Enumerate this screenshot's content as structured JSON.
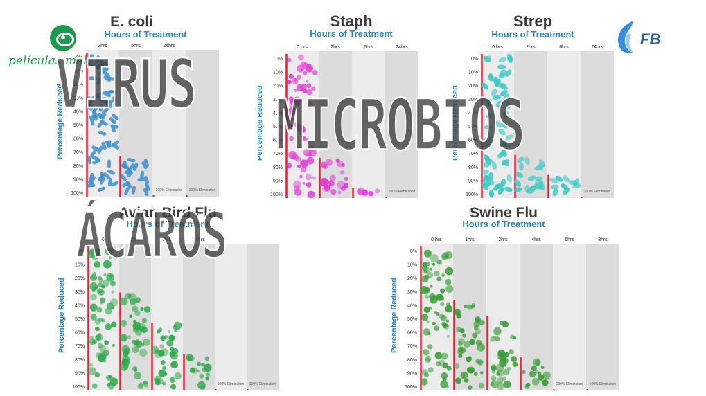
{
  "brand_left": {
    "name": "películas mel s.a."
  },
  "brand_right": {
    "name": "FB"
  },
  "overlay_words": {
    "virus": "VIRUS",
    "microbios": "MICROBIOS",
    "acaros": "ÁCAROS"
  },
  "axis_common": {
    "y_label": "Percentage Reduced",
    "y_ticks": [
      "0%",
      "10%",
      "20%",
      "30%",
      "40%",
      "50%",
      "60%",
      "70%",
      "80%",
      "90%",
      "100%"
    ],
    "elimination_label": "100% Elimination"
  },
  "colors": {
    "ecoli": "#3d8fd0",
    "staph": "#e23ad6",
    "strep": "#39c9c4",
    "avian": "#2ea84a",
    "swine": "#3a9e3a",
    "bar_line": "#d9263a",
    "title": "#3a3a3a",
    "subtitle": "#2a86c6"
  },
  "panels": {
    "ecoli": {
      "title": "E. coli",
      "subtitle": "Hours of Treatment",
      "columns": [
        "2hrs",
        "6hrs",
        "24hrs"
      ]
    },
    "staph": {
      "title": "Staph",
      "subtitle": "Hours of Treatment",
      "columns": [
        "0 hrs",
        "2hrs",
        "6hrs",
        "24hrs"
      ]
    },
    "strep": {
      "title": "Strep",
      "subtitle": "Hours of Treatment",
      "columns": [
        "0 hrs",
        "2hrs",
        "6hrs",
        "24hrs"
      ]
    },
    "avian": {
      "title": "Avian Bird Flu",
      "subtitle": "Hours of Treatment",
      "columns": [
        "0",
        "2hrs",
        "6hrs",
        "24hrs"
      ]
    },
    "swine": {
      "title": "Swine Flu",
      "subtitle": "Hours of Treatment",
      "columns": [
        "0 hrs",
        "1hrs",
        "2hrs",
        "4hrs",
        "6hrs",
        "8hrs"
      ]
    }
  }
}
